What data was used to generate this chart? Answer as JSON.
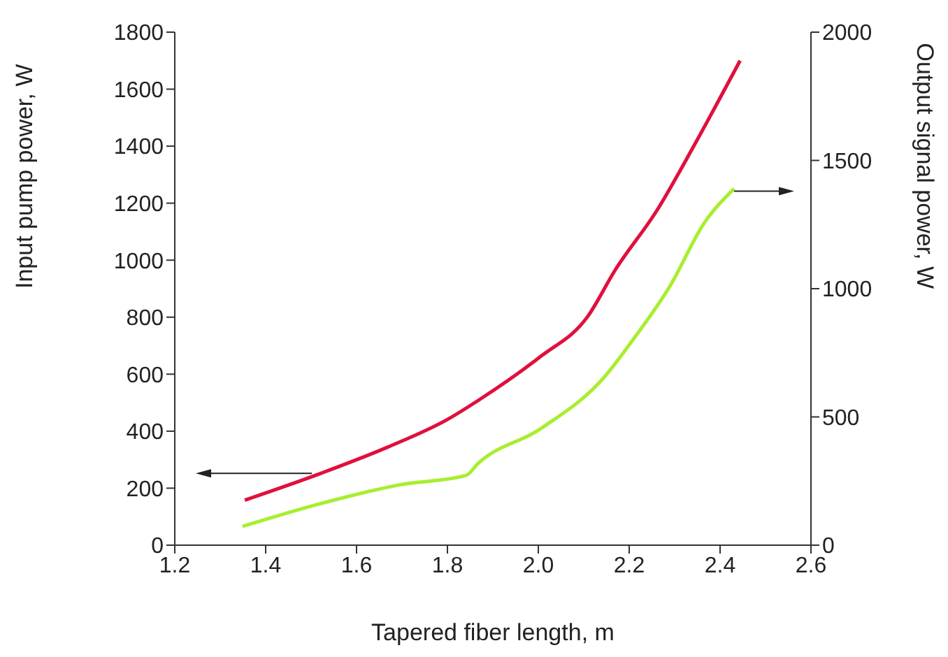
{
  "chart_data": {
    "type": "line",
    "xlabel": "Tapered fiber length, m",
    "ylabel": "Input pump power, W",
    "y2label": "Output signal power, W",
    "series": [
      {
        "color": "#e0103c",
        "x": [
          1.354,
          1.523,
          1.667,
          1.8,
          1.867,
          2.005,
          2.108,
          2.169,
          2.262,
          2.344,
          2.444
        ],
        "values": [
          158,
          253,
          343,
          441,
          507,
          662,
          801,
          965,
          1177,
          1406,
          1700
        ]
      },
      {
        "color": "#a8ee30",
        "axis": "y2",
        "x": [
          1.349,
          1.523,
          1.697,
          1.841,
          1.867,
          2.005,
          2.149,
          2.2,
          2.292,
          2.364,
          2.431
        ],
        "values": [
          73,
          163,
          236,
          272,
          318,
          454,
          663,
          781,
          1017,
          1253,
          1390
        ]
      }
    ],
    "xlim": [
      1.2,
      2.6
    ],
    "xticks": [
      {
        "value": 1.2,
        "label": "1.2"
      },
      1.4,
      1.6,
      1.8,
      {
        "value": 2.0,
        "label": "2.0"
      },
      2.2,
      2.4,
      2.6
    ],
    "ylim": [
      0,
      1800
    ],
    "yticks": [
      0,
      200,
      400,
      600,
      800,
      1000,
      1200,
      1400,
      1600,
      1800
    ],
    "y2lim": [
      0,
      2000
    ],
    "y2ticks": [
      0,
      500,
      1000,
      1500,
      2000
    ],
    "grid": false,
    "legend": false,
    "marker": "none",
    "line_style": "solid"
  }
}
